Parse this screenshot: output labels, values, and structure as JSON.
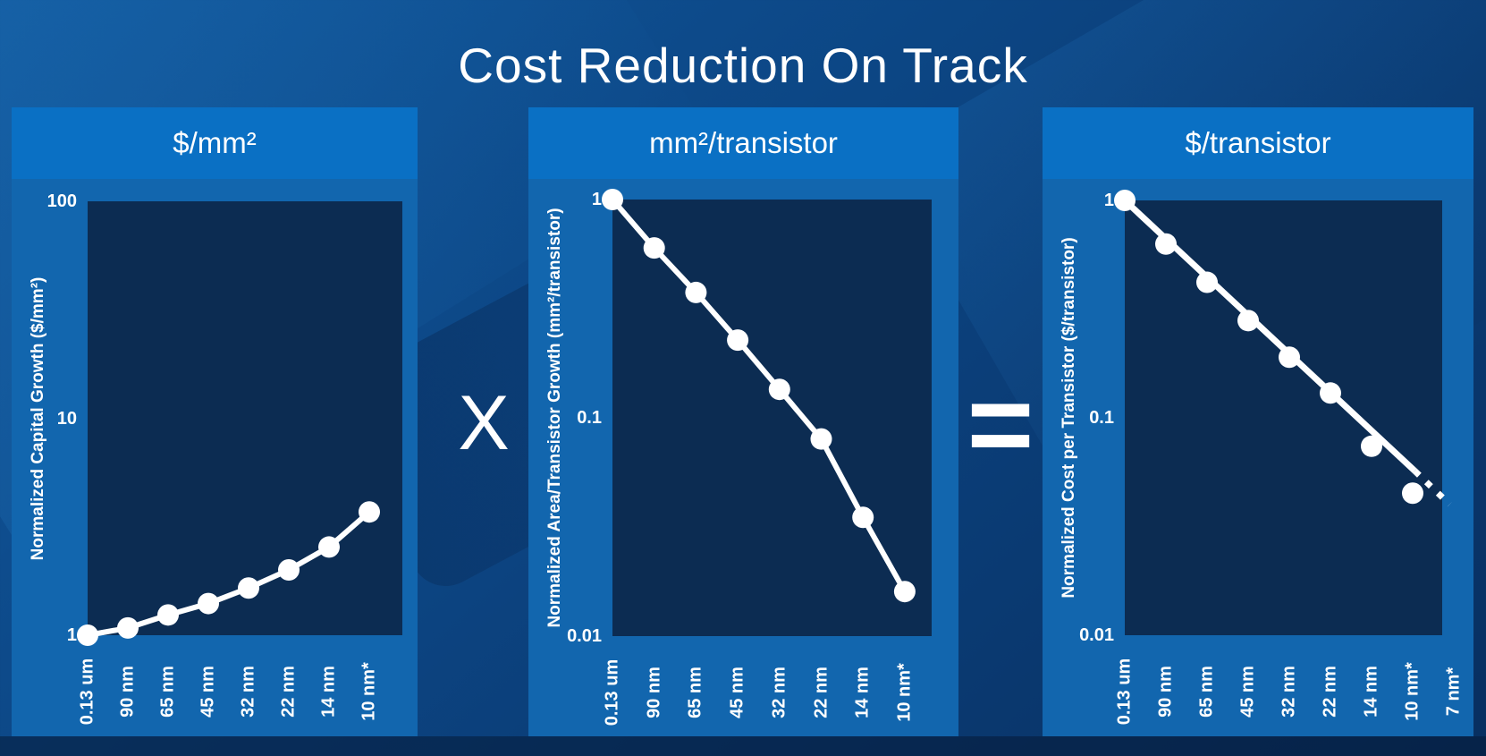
{
  "slide": {
    "title": "Cost Reduction On Track",
    "operator_multiply": "X",
    "operator_equals": "="
  },
  "colors": {
    "header_bg": "#0a70c4",
    "panel_bg": "#1266ae",
    "plot_bg": "#0c2c52",
    "series": "#ffffff",
    "text": "#ffffff"
  },
  "chart_data": [
    {
      "type": "line",
      "title": "$/mm²",
      "ylabel": "Normalized Capital Growth ($/mm²)",
      "xlabel": "",
      "scale": "log",
      "grid": false,
      "legend": null,
      "categories": [
        "0.13 um",
        "90 nm",
        "65 nm",
        "45 nm",
        "32 nm",
        "22 nm",
        "14 nm",
        "10 nm*"
      ],
      "values": [
        1.0,
        1.08,
        1.24,
        1.4,
        1.65,
        2.0,
        2.55,
        3.7
      ],
      "ylim": [
        1,
        100
      ],
      "yticks": [
        {
          "value": 100,
          "label": "100"
        },
        {
          "value": 10,
          "label": "10"
        },
        {
          "value": 1,
          "label": "1"
        }
      ]
    },
    {
      "type": "line",
      "title": "mm²/transistor",
      "ylabel": "Normalized Area/Transistor Growth (mm²/transistor)",
      "xlabel": "",
      "scale": "log",
      "grid": false,
      "legend": null,
      "categories": [
        "0.13 um",
        "90 nm",
        "65 nm",
        "45 nm",
        "32 nm",
        "22 nm",
        "14 nm",
        "10 nm*"
      ],
      "values": [
        1.0,
        0.6,
        0.375,
        0.227,
        0.135,
        0.08,
        0.035,
        0.016
      ],
      "ylim": [
        0.01,
        1
      ],
      "yticks": [
        {
          "value": 1,
          "label": "1"
        },
        {
          "value": 0.1,
          "label": "0.1"
        },
        {
          "value": 0.01,
          "label": "0.01"
        }
      ]
    },
    {
      "type": "scatter",
      "title": "$/transistor",
      "ylabel": "Normalized Cost per Transistor ($/transistor)",
      "xlabel": "",
      "scale": "log",
      "grid": false,
      "legend": null,
      "categories": [
        "0.13 um",
        "90 nm",
        "65 nm",
        "45 nm",
        "32 nm",
        "22 nm",
        "14 nm",
        "10 nm*",
        "7 nm*"
      ],
      "values": [
        1.0,
        0.63,
        0.42,
        0.28,
        0.19,
        0.13,
        0.074,
        0.045,
        null
      ],
      "ylim": [
        0.01,
        1
      ],
      "yticks": [
        {
          "value": 1,
          "label": "1"
        },
        {
          "value": 0.1,
          "label": "0.1"
        },
        {
          "value": 0.01,
          "label": "0.01"
        }
      ],
      "trend": {
        "start_node": 0,
        "start_value": 1.0,
        "solid_end_node": 7.05,
        "solid_end_value": 0.057,
        "dash_end_node": 7.9,
        "dash_end_value": 0.04
      }
    }
  ]
}
